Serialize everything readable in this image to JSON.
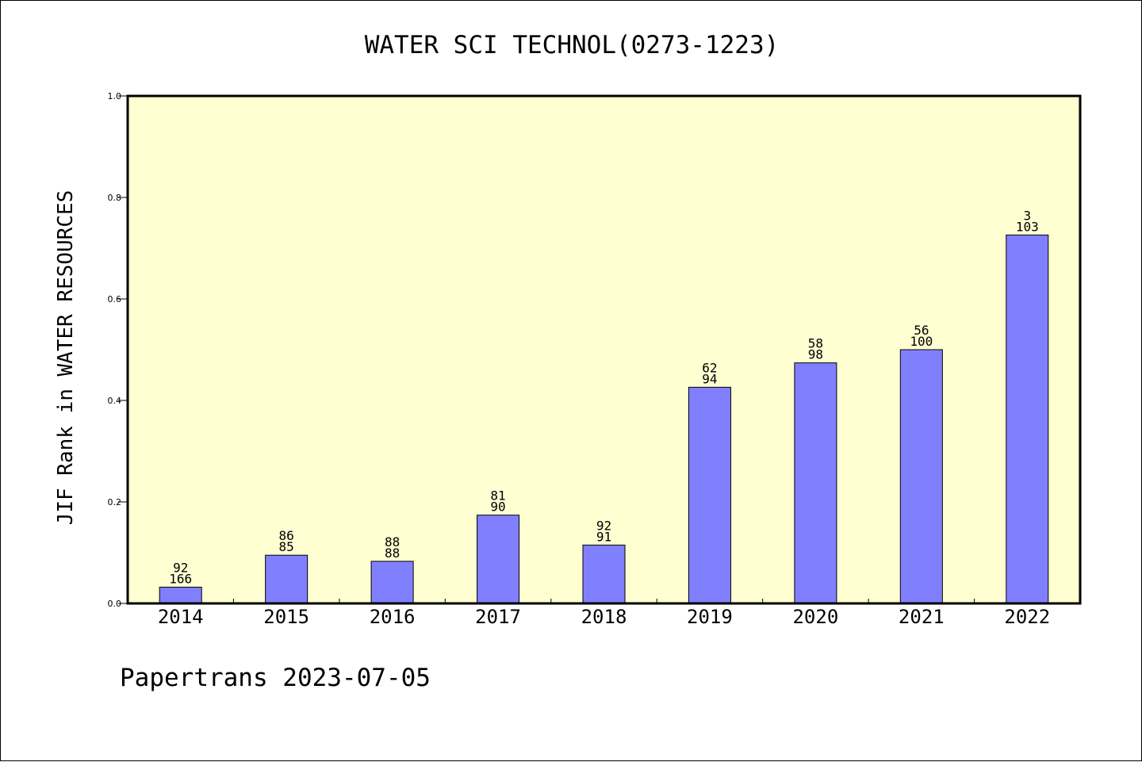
{
  "chart_data": {
    "type": "bar",
    "title": "WATER SCI TECHNOL(0273-1223)",
    "ylabel": "JIF Rank in WATER RESOURCES",
    "xlabel": "",
    "ylim": [
      0,
      1.0
    ],
    "yticks": [
      "0.0",
      "0.2",
      "0.4",
      "0.6",
      "0.8",
      "1.0"
    ],
    "categories": [
      "2014",
      "2015",
      "2016",
      "2017",
      "2018",
      "2019",
      "2020",
      "2021",
      "2022"
    ],
    "values": [
      0.032,
      0.095,
      0.083,
      0.174,
      0.115,
      0.426,
      0.474,
      0.5,
      0.726
    ],
    "labels_top": [
      "92",
      "86",
      "88",
      "81",
      "92",
      "62",
      "58",
      "56",
      "3"
    ],
    "labels_bottom": [
      "166",
      "85",
      "88",
      "90",
      "91",
      "94",
      "98",
      "100",
      "103"
    ],
    "grid": false,
    "bar_color": "#8080ff",
    "plot_background": "#ffffd2"
  },
  "footer": "Papertrans 2023-07-05"
}
